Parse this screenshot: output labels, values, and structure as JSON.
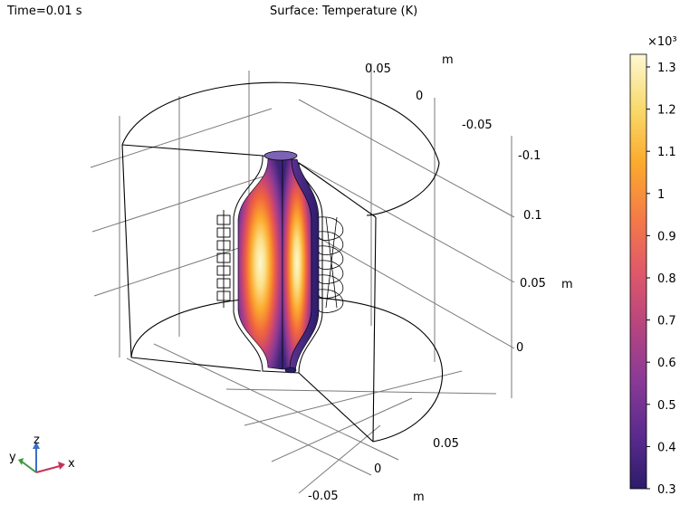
{
  "header": {
    "time_label": "Time=0.01 s",
    "plot_title": "Surface: Temperature (K)"
  },
  "axes": {
    "y_ticks": [
      "0.05",
      "0",
      "-0.05",
      "-0.1"
    ],
    "y_unit": "m",
    "z_ticks": [
      "0.1",
      "0.05",
      "0"
    ],
    "z_unit": "m",
    "x_ticks": [
      "0.05",
      "0",
      "-0.05"
    ],
    "x_unit": "m"
  },
  "triad": {
    "x": "x",
    "y": "y",
    "z": "z",
    "colors": {
      "x": "#c8325a",
      "y": "#3c9a3c",
      "z": "#3a6fc4"
    }
  },
  "colorbar": {
    "multiplier": "×10³",
    "ticks": [
      "1.3",
      "1.2",
      "1.1",
      "1",
      "0.9",
      "0.8",
      "0.7",
      "0.6",
      "0.5",
      "0.4",
      "0.3"
    ],
    "colormap_stops": [
      "#2c1c6a",
      "#5a2a8e",
      "#8a3a96",
      "#b8457e",
      "#e0586a",
      "#f47a48",
      "#fbaa2e",
      "#f9d868",
      "#fdf8d2"
    ]
  },
  "chart_data": {
    "type": "surface-3d",
    "title": "Surface: Temperature (K)",
    "time": "Time=0.01 s",
    "quantity": "Temperature",
    "unit": "K",
    "color_range": [
      300,
      1330
    ],
    "colorbar_ticks": [
      300,
      400,
      500,
      600,
      700,
      800,
      900,
      1000,
      1100,
      1200,
      1300
    ],
    "axis_x": {
      "ticks": [
        -0.05,
        0,
        0.05
      ],
      "unit": "m"
    },
    "axis_y": {
      "ticks": [
        -0.1,
        -0.05,
        0,
        0.05
      ],
      "unit": "m"
    },
    "axis_z": {
      "ticks": [
        0,
        0.05,
        0.1
      ],
      "unit": "m"
    },
    "grid": true,
    "max_temperature_region": "center of cylindrical workpiece",
    "colorbar_placement": "right"
  }
}
